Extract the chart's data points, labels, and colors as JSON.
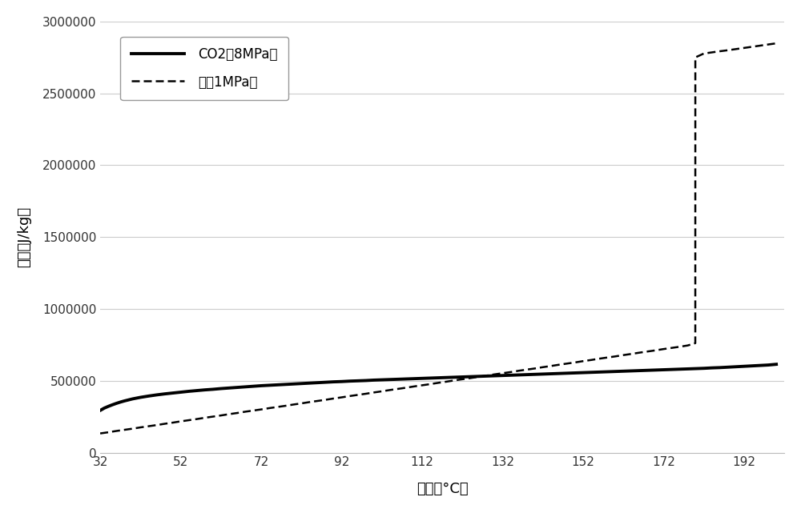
{
  "title": "",
  "xlabel": "温度（°C）",
  "ylabel": "焉値（J/kg）",
  "xlim": [
    32,
    202
  ],
  "ylim": [
    0,
    3000000
  ],
  "xticks": [
    32,
    52,
    72,
    92,
    112,
    132,
    152,
    172,
    192
  ],
  "yticks": [
    0,
    500000,
    1000000,
    1500000,
    2000000,
    2500000,
    3000000
  ],
  "legend_labels": [
    "CO2（8MPa）",
    "水（1MPa）"
  ],
  "background_color": "#ffffff",
  "grid_color": "#cccccc",
  "co2_data": {
    "temp": [
      32,
      33,
      34,
      35,
      36,
      37,
      38,
      39,
      40,
      42,
      44,
      46,
      48,
      50,
      52,
      54,
      56,
      58,
      60,
      62,
      64,
      66,
      68,
      70,
      72,
      74,
      76,
      78,
      80,
      82,
      84,
      86,
      88,
      90,
      92,
      94,
      96,
      98,
      100,
      102,
      104,
      106,
      108,
      110,
      112,
      114,
      116,
      118,
      120,
      122,
      124,
      126,
      128,
      130,
      132,
      134,
      136,
      138,
      140,
      142,
      144,
      146,
      148,
      150,
      152,
      154,
      156,
      158,
      160,
      162,
      164,
      166,
      168,
      170,
      172,
      174,
      176,
      178,
      180,
      182,
      184,
      186,
      188,
      190,
      192,
      194,
      196,
      198,
      200
    ],
    "enthalpy": [
      294000,
      310000,
      322000,
      333000,
      343000,
      352000,
      360000,
      367000,
      374000,
      385000,
      394000,
      402000,
      409000,
      415000,
      421000,
      427000,
      432000,
      437000,
      441000,
      446000,
      450000,
      454000,
      458000,
      462000,
      466000,
      469000,
      472000,
      475000,
      478000,
      481000,
      484000,
      487000,
      490000,
      493000,
      495000,
      498000,
      500000,
      502000,
      505000,
      507000,
      509000,
      511000,
      513000,
      515000,
      517000,
      519000,
      521000,
      523000,
      525000,
      527000,
      529000,
      531000,
      533000,
      535000,
      537000,
      539000,
      541000,
      543000,
      545000,
      547000,
      549000,
      551000,
      553000,
      555000,
      557000,
      559000,
      561000,
      563000,
      565000,
      567000,
      569000,
      571000,
      573000,
      575000,
      577000,
      579000,
      581000,
      583000,
      585000,
      587000,
      590000,
      592000,
      595000,
      598000,
      601000,
      604000,
      607000,
      610000,
      615000
    ]
  },
  "water_data": {
    "temp": [
      32,
      34,
      36,
      38,
      40,
      42,
      44,
      46,
      48,
      50,
      52,
      54,
      56,
      58,
      60,
      62,
      64,
      66,
      68,
      70,
      72,
      74,
      76,
      78,
      80,
      82,
      84,
      86,
      88,
      90,
      92,
      94,
      96,
      98,
      100,
      102,
      104,
      106,
      108,
      110,
      112,
      114,
      116,
      118,
      120,
      122,
      124,
      126,
      128,
      130,
      132,
      134,
      136,
      138,
      140,
      142,
      144,
      146,
      148,
      150,
      152,
      154,
      156,
      158,
      160,
      162,
      164,
      166,
      168,
      170,
      172,
      174,
      176,
      178,
      179.88,
      179.89,
      182,
      184,
      186,
      188,
      190,
      192,
      194,
      196,
      198,
      200
    ],
    "enthalpy": [
      134000,
      142000,
      151000,
      159000,
      167000,
      176000,
      184000,
      192000,
      201000,
      209000,
      218000,
      226000,
      234000,
      243000,
      251000,
      259000,
      268000,
      276000,
      285000,
      293000,
      301000,
      310000,
      318000,
      326000,
      335000,
      343000,
      352000,
      360000,
      368000,
      377000,
      385000,
      394000,
      402000,
      410000,
      419000,
      427000,
      436000,
      444000,
      452000,
      461000,
      469000,
      477000,
      486000,
      494000,
      503000,
      511000,
      519000,
      528000,
      536000,
      545000,
      553000,
      561000,
      570000,
      578000,
      586000,
      595000,
      603000,
      612000,
      620000,
      628000,
      637000,
      645000,
      654000,
      662000,
      670000,
      679000,
      687000,
      696000,
      704000,
      712000,
      721000,
      729000,
      737000,
      746000,
      762000,
      2750000,
      2777000,
      2785000,
      2793000,
      2800000,
      2808000,
      2816000,
      2824000,
      2832000,
      2840000,
      2848000
    ]
  }
}
